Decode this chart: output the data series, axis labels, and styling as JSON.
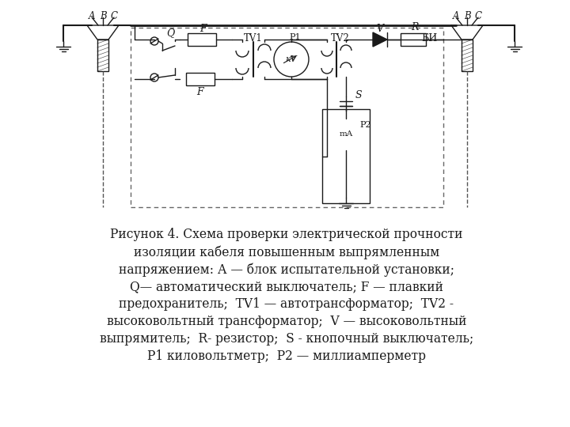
{
  "bg_color": "#ffffff",
  "line_color": "#1a1a1a",
  "fig_width": 7.2,
  "fig_height": 5.4,
  "caption_lines": [
    "Рисунок 4. Схема проверки электрической прочности",
    "изоляции кабеля повышенным выпрямленным",
    "напряжением: А — блок испытательной установки;",
    "Q— автоматический выключатель; F — плавкий",
    "предохранитель;  TV1 — автотрансформатор;  TV2 -",
    "высоковольтный трансформатор;  V — высоковольтный",
    "выпрямитель;  R- резистор;  S - кнопочный выключатель;",
    "P1 киловольтметр;  P2 — миллиамперметр"
  ],
  "caption_fontsize": 11.2
}
